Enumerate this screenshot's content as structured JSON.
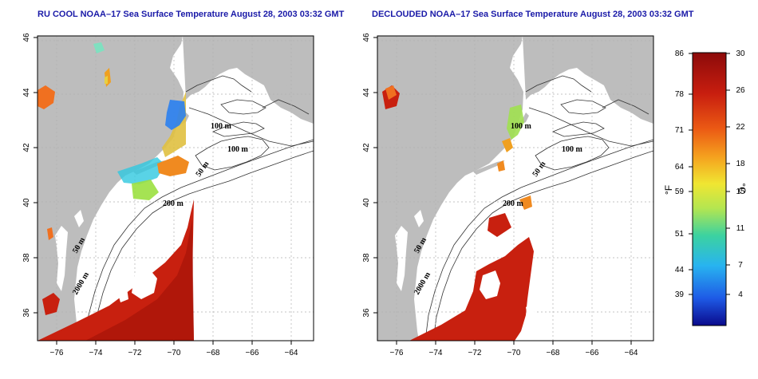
{
  "panels": [
    {
      "title": "RU COOL NOAA–17 Sea Surface Temperature August 28, 2003 03:32 GMT",
      "contour_labels": [
        "100 m",
        "100 m",
        "50 m",
        "200 m",
        "50 m",
        "2000 m"
      ]
    },
    {
      "title": "DECLOUDED NOAA–17 Sea Surface Temperature August 28, 2003 03:32 GMT",
      "contour_labels": [
        "100 m",
        "100 m",
        "50 m",
        "200 m",
        "50 m",
        "2000 m"
      ]
    }
  ],
  "axes": {
    "x_ticks": [
      "−76",
      "−74",
      "−72",
      "−70",
      "−68",
      "−66",
      "−64"
    ],
    "y_ticks": [
      "46",
      "44",
      "42",
      "40",
      "38",
      "36"
    ]
  },
  "colorbar": {
    "f_ticks": [
      "86",
      "78",
      "71",
      "64",
      "59",
      "51",
      "44",
      "39"
    ],
    "c_ticks": [
      "30",
      "26",
      "22",
      "18",
      "15",
      "11",
      "7",
      "4"
    ],
    "f_unit": "°F",
    "c_unit": "°C",
    "colors": [
      "#0a0a8c",
      "#1e5ae6",
      "#28b4f0",
      "#3cd2a0",
      "#b4e650",
      "#f0e632",
      "#f5a01e",
      "#eb5a14",
      "#c81e0f",
      "#8c0a0a"
    ]
  },
  "colors": {
    "land": "#bdbdbd",
    "sea": "#ffffff",
    "hot_sst": "#c8200f",
    "title": "#1a1aa8"
  }
}
